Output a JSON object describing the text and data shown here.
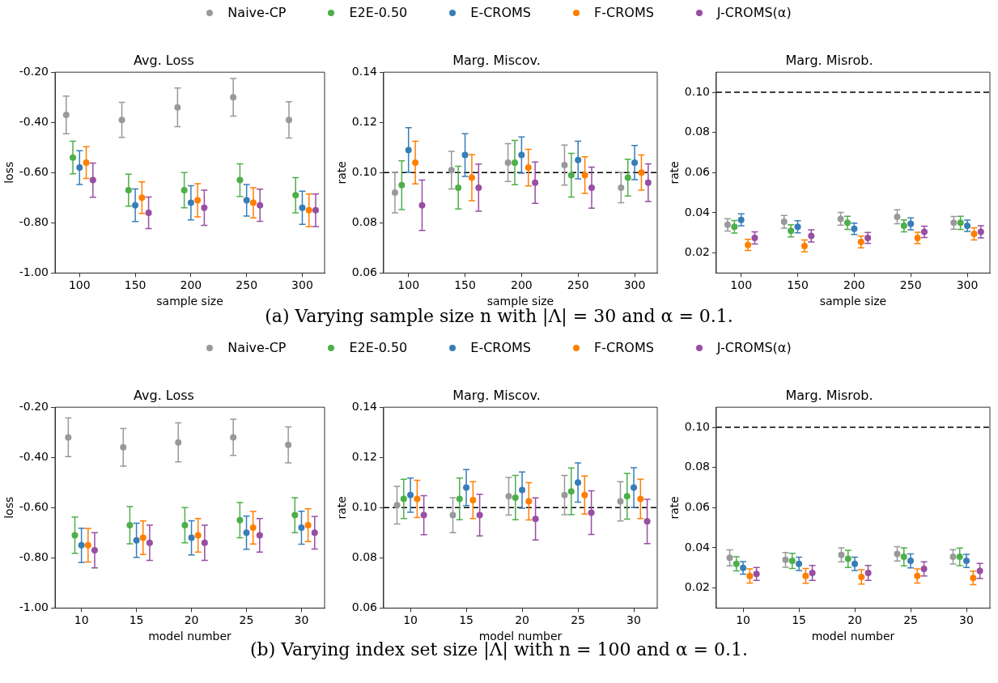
{
  "chart_data": [
    {
      "type": "scatter",
      "title": "Avg. Loss",
      "xlabel": "sample size",
      "ylabel": "loss",
      "xlim": [
        78,
        320
      ],
      "xticks": [
        100,
        150,
        200,
        250,
        300
      ],
      "ylim": [
        -1.0,
        -0.2
      ],
      "yticks": [
        {
          "value": -1.0,
          "label": "-1.00"
        },
        {
          "value": -0.8,
          "label": "-0.80"
        },
        {
          "value": -0.6,
          "label": "-0.60"
        },
        {
          "value": -0.4,
          "label": "-0.40"
        },
        {
          "value": -0.2,
          "label": "-0.20"
        }
      ],
      "grid": false,
      "marker": "circle",
      "legend": "top",
      "annotations": [
        "(a) Varying sample size n with |Λ| = 30 and α = 0.1."
      ],
      "series": [
        {
          "name": "Naive-CP",
          "color": "#999999",
          "x": [
            88,
            138,
            188,
            238,
            288
          ],
          "values": [
            -0.37,
            -0.39,
            -0.34,
            -0.3,
            -0.39
          ],
          "errors": [
            0.075,
            0.07,
            0.077,
            0.075,
            0.072
          ]
        },
        {
          "name": "E2E-0.50",
          "color": "#4daf4a",
          "x": [
            94,
            144,
            194,
            244,
            294
          ],
          "values": [
            -0.54,
            -0.67,
            -0.67,
            -0.63,
            -0.69
          ],
          "errors": [
            0.065,
            0.064,
            0.07,
            0.065,
            0.07
          ]
        },
        {
          "name": "E-CROMS",
          "color": "#377eb8",
          "x": [
            100,
            150,
            200,
            250,
            300
          ],
          "values": [
            -0.58,
            -0.73,
            -0.72,
            -0.71,
            -0.74
          ],
          "errors": [
            0.067,
            0.065,
            0.068,
            0.063,
            0.066
          ]
        },
        {
          "name": "F-CROMS",
          "color": "#ff7f00",
          "x": [
            106,
            156,
            206,
            256,
            306
          ],
          "values": [
            -0.56,
            -0.7,
            -0.71,
            -0.72,
            -0.75
          ],
          "errors": [
            0.063,
            0.063,
            0.066,
            0.06,
            0.065
          ]
        },
        {
          "name": "J-CROMS(α)",
          "color": "#984ea3",
          "x": [
            112,
            162,
            212,
            262,
            312
          ],
          "values": [
            -0.63,
            -0.76,
            -0.74,
            -0.73,
            -0.75
          ],
          "errors": [
            0.068,
            0.063,
            0.07,
            0.064,
            0.065
          ]
        }
      ]
    },
    {
      "type": "scatter",
      "title": "Marg. Miscov.",
      "xlabel": "sample size",
      "ylabel": "rate",
      "xlim": [
        78,
        320
      ],
      "xticks": [
        100,
        150,
        200,
        250,
        300
      ],
      "ylim": [
        0.06,
        0.14
      ],
      "yticks": [
        0.06,
        0.08,
        {
          "value": 0.1,
          "label": "0.10"
        },
        0.12,
        0.14
      ],
      "grid": false,
      "marker": "circle",
      "ref_lines": [
        {
          "axis": "y",
          "value": 0.1,
          "color": "#000000",
          "line_style": "dashed"
        }
      ],
      "series": [
        {
          "color": "#999999",
          "x": [
            88,
            138,
            188,
            238,
            288
          ],
          "values": [
            0.092,
            0.101,
            0.104,
            0.103,
            0.094
          ],
          "errors": [
            0.008,
            0.0075,
            0.0075,
            0.008,
            0.006
          ]
        },
        {
          "color": "#4daf4a",
          "x": [
            94,
            144,
            194,
            244,
            294
          ],
          "values": [
            0.095,
            0.094,
            0.104,
            0.099,
            0.098
          ],
          "errors": [
            0.0097,
            0.0085,
            0.0088,
            0.0087,
            0.0073
          ]
        },
        {
          "color": "#377eb8",
          "x": [
            100,
            150,
            200,
            250,
            300
          ],
          "values": [
            0.109,
            0.107,
            0.107,
            0.105,
            0.104
          ],
          "errors": [
            0.0089,
            0.0085,
            0.0072,
            0.0075,
            0.0068
          ]
        },
        {
          "color": "#ff7f00",
          "x": [
            106,
            156,
            206,
            256,
            306
          ],
          "values": [
            0.104,
            0.098,
            0.102,
            0.099,
            0.1
          ],
          "errors": [
            0.0085,
            0.0092,
            0.0073,
            0.0073,
            0.007
          ]
        },
        {
          "color": "#984ea3",
          "x": [
            112,
            162,
            212,
            262,
            312
          ],
          "values": [
            0.087,
            0.094,
            0.096,
            0.094,
            0.096
          ],
          "errors": [
            0.01,
            0.0094,
            0.0082,
            0.0082,
            0.0075
          ]
        }
      ]
    },
    {
      "type": "scatter",
      "title": "Marg. Misrob.",
      "xlabel": "sample size",
      "ylabel": "rate",
      "xlim": [
        78,
        320
      ],
      "xticks": [
        100,
        150,
        200,
        250,
        300
      ],
      "ylim": [
        0.01,
        0.11
      ],
      "yticks": [
        0.02,
        0.04,
        0.06,
        0.08,
        {
          "value": 0.1,
          "label": "0.10"
        }
      ],
      "grid": false,
      "marker": "circle",
      "ref_lines": [
        {
          "axis": "y",
          "value": 0.1,
          "color": "#000000",
          "line_style": "dashed"
        }
      ],
      "series": [
        {
          "color": "#999999",
          "x": [
            88,
            138,
            188,
            238,
            288
          ],
          "values": [
            0.034,
            0.0355,
            0.037,
            0.038,
            0.035
          ],
          "errors": [
            0.0031,
            0.0032,
            0.0032,
            0.0035,
            0.0032
          ]
        },
        {
          "color": "#4daf4a",
          "x": [
            94,
            144,
            194,
            244,
            294
          ],
          "values": [
            0.033,
            0.031,
            0.035,
            0.0335,
            0.035
          ],
          "errors": [
            0.0031,
            0.003,
            0.0033,
            0.003,
            0.0033
          ]
        },
        {
          "color": "#377eb8",
          "x": [
            100,
            150,
            200,
            250,
            300
          ],
          "values": [
            0.0365,
            0.033,
            0.032,
            0.0345,
            0.0335
          ],
          "errors": [
            0.003,
            0.003,
            0.0028,
            0.003,
            0.0028
          ]
        },
        {
          "color": "#ff7f00",
          "x": [
            106,
            156,
            206,
            256,
            306
          ],
          "values": [
            0.024,
            0.0235,
            0.0255,
            0.0275,
            0.0295
          ],
          "errors": [
            0.0028,
            0.003,
            0.0029,
            0.0028,
            0.003
          ]
        },
        {
          "color": "#984ea3",
          "x": [
            112,
            162,
            212,
            262,
            312
          ],
          "values": [
            0.0275,
            0.0285,
            0.0275,
            0.0305,
            0.0305
          ],
          "errors": [
            0.003,
            0.003,
            0.0027,
            0.0028,
            0.003
          ]
        }
      ]
    },
    {
      "type": "scatter",
      "title": "Avg. Loss",
      "xlabel": "model number",
      "ylabel": "loss",
      "xlim": [
        7.6,
        32.1
      ],
      "xticks": [
        10,
        15,
        20,
        25,
        30
      ],
      "ylim": [
        -1.0,
        -0.2
      ],
      "yticks": [
        {
          "value": -1.0,
          "label": "-1.00"
        },
        {
          "value": -0.8,
          "label": "-0.80"
        },
        {
          "value": -0.6,
          "label": "-0.60"
        },
        {
          "value": -0.4,
          "label": "-0.40"
        },
        {
          "value": -0.2,
          "label": "-0.20"
        }
      ],
      "grid": false,
      "marker": "circle",
      "legend": "top",
      "annotations": [
        "(b) Varying index set size |Λ| with n = 100 and α = 0.1."
      ],
      "series": [
        {
          "name": "Naive-CP",
          "color": "#999999",
          "x": [
            8.8,
            13.8,
            18.8,
            23.8,
            28.8
          ],
          "values": [
            -0.32,
            -0.36,
            -0.34,
            -0.32,
            -0.35
          ],
          "errors": [
            0.077,
            0.075,
            0.078,
            0.072,
            0.072
          ]
        },
        {
          "name": "E2E-0.50",
          "color": "#4daf4a",
          "x": [
            9.4,
            14.4,
            19.4,
            24.4,
            29.4
          ],
          "values": [
            -0.71,
            -0.67,
            -0.67,
            -0.65,
            -0.63
          ],
          "errors": [
            0.072,
            0.074,
            0.07,
            0.07,
            0.07
          ]
        },
        {
          "name": "E-CROMS",
          "color": "#377eb8",
          "x": [
            10,
            15,
            20,
            25,
            30
          ],
          "values": [
            -0.75,
            -0.73,
            -0.72,
            -0.7,
            -0.68
          ],
          "errors": [
            0.068,
            0.068,
            0.068,
            0.066,
            0.066
          ]
        },
        {
          "name": "F-CROMS",
          "color": "#ff7f00",
          "x": [
            10.6,
            15.6,
            20.6,
            25.6,
            30.6
          ],
          "values": [
            -0.75,
            -0.72,
            -0.71,
            -0.68,
            -0.67
          ],
          "errors": [
            0.067,
            0.067,
            0.067,
            0.065,
            0.065
          ]
        },
        {
          "name": "J-CROMS(α)",
          "color": "#984ea3",
          "x": [
            11.2,
            16.2,
            21.2,
            26.2,
            31.2
          ],
          "values": [
            -0.77,
            -0.74,
            -0.74,
            -0.71,
            -0.7
          ],
          "errors": [
            0.07,
            0.07,
            0.07,
            0.067,
            0.065
          ]
        }
      ]
    },
    {
      "type": "scatter",
      "title": "Marg. Miscov.",
      "xlabel": "model number",
      "ylabel": "rate",
      "xlim": [
        7.6,
        32.1
      ],
      "xticks": [
        10,
        15,
        20,
        25,
        30
      ],
      "ylim": [
        0.06,
        0.14
      ],
      "yticks": [
        0.06,
        0.08,
        {
          "value": 0.1,
          "label": "0.10"
        },
        0.12,
        0.14
      ],
      "grid": false,
      "marker": "circle",
      "ref_lines": [
        {
          "axis": "y",
          "value": 0.1,
          "color": "#000000",
          "line_style": "dashed"
        }
      ],
      "series": [
        {
          "color": "#999999",
          "x": [
            8.8,
            13.8,
            18.8,
            23.8,
            28.8
          ],
          "values": [
            0.101,
            0.097,
            0.1045,
            0.105,
            0.1025
          ],
          "errors": [
            0.0075,
            0.007,
            0.0075,
            0.0078,
            0.0078
          ]
        },
        {
          "color": "#4daf4a",
          "x": [
            9.4,
            14.4,
            19.4,
            24.4,
            29.4
          ],
          "values": [
            0.1035,
            0.1035,
            0.104,
            0.1065,
            0.1045
          ],
          "errors": [
            0.0078,
            0.0083,
            0.0088,
            0.0093,
            0.0091
          ]
        },
        {
          "color": "#377eb8",
          "x": [
            10,
            15,
            20,
            25,
            30
          ],
          "values": [
            0.105,
            0.108,
            0.107,
            0.11,
            0.108
          ],
          "errors": [
            0.0068,
            0.0072,
            0.0072,
            0.0078,
            0.0079
          ]
        },
        {
          "color": "#ff7f00",
          "x": [
            10.6,
            15.6,
            20.6,
            25.6,
            30.6
          ],
          "values": [
            0.1035,
            0.103,
            0.1025,
            0.105,
            0.1035
          ],
          "errors": [
            0.0074,
            0.0073,
            0.0074,
            0.0076,
            0.0078
          ]
        },
        {
          "color": "#984ea3",
          "x": [
            11.2,
            16.2,
            21.2,
            26.2,
            31.2
          ],
          "values": [
            0.097,
            0.097,
            0.0955,
            0.098,
            0.0945
          ],
          "errors": [
            0.0078,
            0.0083,
            0.0084,
            0.0087,
            0.0088
          ]
        }
      ]
    },
    {
      "type": "scatter",
      "title": "Marg. Misrob.",
      "xlabel": "model number",
      "ylabel": "rate",
      "xlim": [
        7.6,
        32.1
      ],
      "xticks": [
        10,
        15,
        20,
        25,
        30
      ],
      "ylim": [
        0.01,
        0.11
      ],
      "yticks": [
        0.02,
        0.04,
        0.06,
        0.08,
        {
          "value": 0.1,
          "label": "0.10"
        }
      ],
      "grid": false,
      "marker": "circle",
      "ref_lines": [
        {
          "axis": "y",
          "value": 0.1,
          "color": "#000000",
          "line_style": "dashed"
        }
      ],
      "series": [
        {
          "color": "#999999",
          "x": [
            8.8,
            13.8,
            18.8,
            23.8,
            28.8
          ],
          "values": [
            0.035,
            0.034,
            0.0365,
            0.037,
            0.0355
          ],
          "errors": [
            0.004,
            0.0037,
            0.0035,
            0.0036,
            0.0036
          ]
        },
        {
          "color": "#4daf4a",
          "x": [
            9.4,
            14.4,
            19.4,
            24.4,
            29.4
          ],
          "values": [
            0.032,
            0.0335,
            0.0345,
            0.0355,
            0.0355
          ],
          "errors": [
            0.0035,
            0.0038,
            0.0043,
            0.0045,
            0.0044
          ]
        },
        {
          "color": "#377eb8",
          "x": [
            10,
            15,
            20,
            25,
            30
          ],
          "values": [
            0.03,
            0.032,
            0.032,
            0.0335,
            0.0335
          ],
          "errors": [
            0.0031,
            0.0033,
            0.0033,
            0.0035,
            0.0033
          ]
        },
        {
          "color": "#ff7f00",
          "x": [
            10.6,
            15.6,
            20.6,
            25.6,
            30.6
          ],
          "values": [
            0.026,
            0.026,
            0.0255,
            0.026,
            0.025
          ],
          "errors": [
            0.0035,
            0.0037,
            0.0036,
            0.0035,
            0.0034
          ]
        },
        {
          "color": "#984ea3",
          "x": [
            11.2,
            16.2,
            21.2,
            26.2,
            31.2
          ],
          "values": [
            0.027,
            0.0275,
            0.0275,
            0.0295,
            0.0285
          ],
          "errors": [
            0.0032,
            0.0037,
            0.0037,
            0.0035,
            0.0037
          ]
        }
      ]
    }
  ]
}
